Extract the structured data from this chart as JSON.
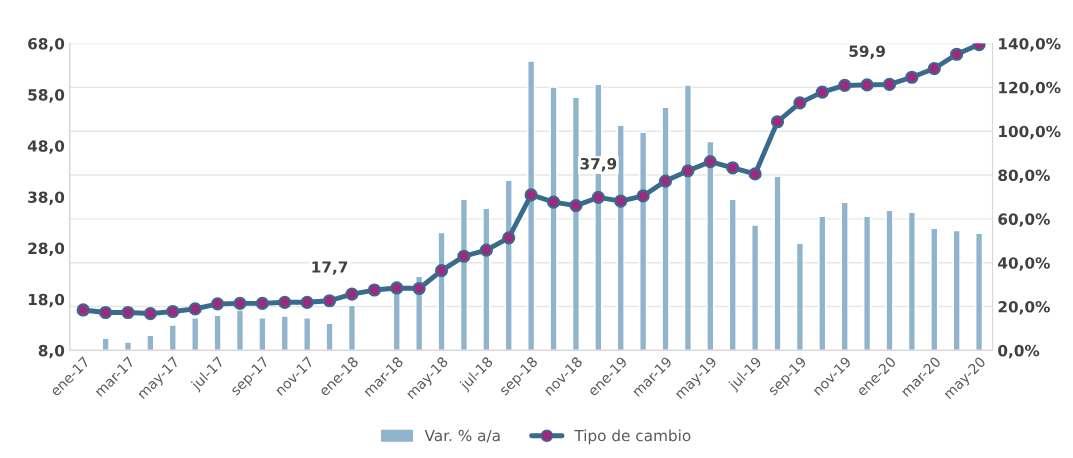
{
  "chart_data": {
    "type": "bar",
    "categories": [
      "ene-17",
      null,
      "mar-17",
      null,
      "may-17",
      null,
      "jul-17",
      null,
      "sep-17",
      null,
      "nov-17",
      null,
      "ene-18",
      null,
      "mar-18",
      null,
      "may-18",
      null,
      "jul-18",
      null,
      "sep-18",
      null,
      "nov-18",
      null,
      "ene-19",
      null,
      "mar-19",
      null,
      "may-19",
      null,
      "jul-19",
      null,
      "sep-19",
      null,
      "nov-19",
      null,
      "ene-20",
      null,
      "mar-20",
      null,
      "may-20"
    ],
    "series": [
      {
        "name": "Var. % a/a",
        "axis": "y2",
        "color": "#8fb4cb",
        "values": [
          null,
          5.5,
          3.8,
          6.9,
          11.5,
          14.8,
          16.0,
          18.4,
          14.8,
          15.7,
          14.8,
          12.4,
          20.6,
          null,
          31.9,
          33.8,
          53.8,
          68.9,
          64.8,
          77.6,
          132.0,
          120.1,
          115.5,
          121.4,
          102.7,
          99.5,
          110.9,
          121.0,
          95.3,
          68.9,
          57.2,
          79.4,
          48.9,
          61.2,
          67.5,
          61.2,
          63.9,
          63.0,
          55.7,
          54.7,
          53.4
        ]
      },
      {
        "name": "Tipo de cambio",
        "type": "line",
        "axis": "y",
        "color": "#3a6a8c",
        "values": [
          15.9,
          15.4,
          15.4,
          15.2,
          15.6,
          16.1,
          17.1,
          17.2,
          17.2,
          17.4,
          17.4,
          17.7,
          19.0,
          19.8,
          20.2,
          20.1,
          23.6,
          26.4,
          27.6,
          30.0,
          38.4,
          37.0,
          36.3,
          37.9,
          37.2,
          38.2,
          41.1,
          43.1,
          44.9,
          43.7,
          42.5,
          52.7,
          56.4,
          58.5,
          59.8,
          59.9,
          60.0,
          61.4,
          63.1,
          65.9,
          67.8
        ],
        "value_labels": [
          null,
          null,
          null,
          null,
          null,
          null,
          null,
          null,
          null,
          null,
          null,
          "17,7",
          null,
          null,
          null,
          null,
          null,
          null,
          null,
          null,
          null,
          null,
          null,
          "37,9",
          null,
          null,
          null,
          null,
          null,
          null,
          null,
          null,
          null,
          null,
          null,
          "59,9",
          null,
          null,
          null,
          null,
          null
        ]
      }
    ],
    "ylim": [
      8,
      68
    ],
    "yticks": [
      {
        "value": 8,
        "label": "8,0"
      },
      {
        "value": 18,
        "label": "18,0"
      },
      {
        "value": 28,
        "label": "28,0"
      },
      {
        "value": 38,
        "label": "38,0"
      },
      {
        "value": 48,
        "label": "48,0"
      },
      {
        "value": 58,
        "label": "58,0"
      },
      {
        "value": 68,
        "label": "68,0"
      }
    ],
    "y2lim": [
      0,
      140
    ],
    "y2ticks": [
      {
        "value": 0,
        "label": "0,0%"
      },
      {
        "value": 20,
        "label": "20,0%"
      },
      {
        "value": 40,
        "label": "40,0%"
      },
      {
        "value": 60,
        "label": "60,0%"
      },
      {
        "value": 80,
        "label": "80,0%"
      },
      {
        "value": 100,
        "label": "100,0%"
      },
      {
        "value": 120,
        "label": "120,0%"
      },
      {
        "value": 140,
        "label": "140,0%"
      }
    ],
    "grid": "y",
    "legend": "bottom",
    "marker": "circle",
    "line_style": "solid"
  }
}
